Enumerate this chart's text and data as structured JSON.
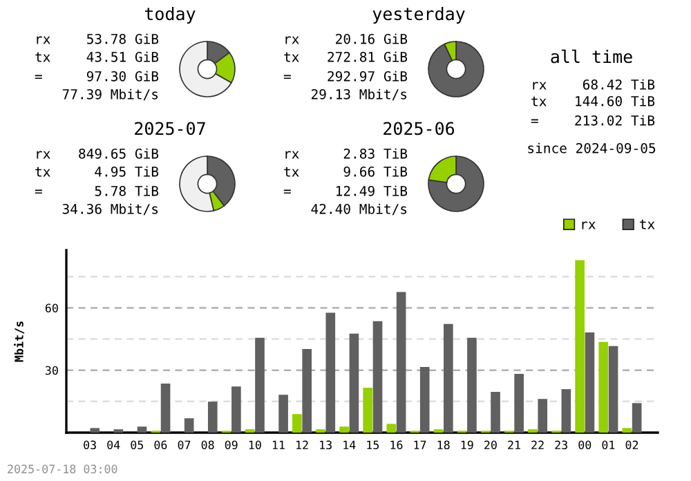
{
  "chart_data": [
    {
      "type": "donut",
      "title": "today",
      "categories": [
        null,
        null,
        null
      ],
      "values": [
        14.85,
        18.36,
        66.79
      ],
      "colors": [
        "#606060",
        "#95d000",
        "#f0f0f0"
      ],
      "annotations": [
        "rx 53.78 GiB",
        "tx 43.51 GiB",
        "= 97.30 GiB",
        "77.39 Mbit/s"
      ]
    },
    {
      "type": "donut",
      "title": "yesterday",
      "categories": [
        null,
        null
      ],
      "values": [
        93.1,
        6.9
      ],
      "colors": [
        "#606060",
        "#95d000"
      ],
      "annotations": [
        "rx 20.16 GiB",
        "tx 272.81 GiB",
        "= 292.97 GiB",
        "29.13 Mbit/s"
      ]
    },
    {
      "type": "other",
      "title": "all time",
      "annotations": [
        "rx 68.42 TiB",
        "tx 144.60 TiB",
        "= 213.02 TiB",
        "since 2024-09-05"
      ]
    },
    {
      "type": "donut",
      "title": "2025-07",
      "categories": [
        null,
        null,
        null
      ],
      "values": [
        39.63,
        6.64,
        53.73
      ],
      "colors": [
        "#606060",
        "#95d000",
        "#f0f0f0"
      ],
      "annotations": [
        "rx 849.65 GiB",
        "tx 4.95 TiB",
        "= 5.78 TiB",
        "34.36 Mbit/s"
      ]
    },
    {
      "type": "donut",
      "title": "2025-06",
      "categories": [
        null,
        null
      ],
      "values": [
        77.3,
        22.7
      ],
      "colors": [
        "#606060",
        "#95d000"
      ],
      "annotations": [
        "rx 2.83 TiB",
        "tx 9.66 TiB",
        "= 12.49 TiB",
        "42.40 Mbit/s"
      ]
    },
    {
      "type": "bar",
      "ylabel": "Mbit/s",
      "categories": [
        "03",
        "04",
        "05",
        "06",
        "07",
        "08",
        "09",
        "10",
        "11",
        "12",
        "13",
        "14",
        "15",
        "16",
        "17",
        "18",
        "19",
        "20",
        "21",
        "22",
        "23",
        "00",
        "01",
        "02"
      ],
      "series": [
        {
          "name": "rx",
          "color": "#95d000",
          "values": [
            0,
            0,
            0,
            0.9,
            0,
            0,
            0.9,
            1.6,
            0,
            8.9,
            1.6,
            2.9,
            21.6,
            4.2,
            0.9,
            1.6,
            0.9,
            0.9,
            0.9,
            1.6,
            0.9,
            82.9,
            43.6,
            2.2
          ]
        },
        {
          "name": "tx",
          "color": "#606060",
          "values": [
            2.2,
            1.6,
            2.9,
            23.6,
            6.9,
            14.9,
            22.2,
            45.6,
            18.2,
            40.2,
            57.6,
            47.6,
            53.6,
            67.6,
            31.6,
            52.2,
            45.6,
            19.6,
            28.2,
            16.2,
            20.9,
            48.2,
            41.6,
            14.2
          ]
        }
      ],
      "ylim": [
        0,
        87.7
      ],
      "yticks": [
        {
          "value": 15,
          "label": null
        },
        30,
        {
          "value": 45,
          "label": null
        },
        60,
        {
          "value": 75,
          "label": null
        }
      ],
      "grid": "y",
      "legend": "top right",
      "annotations": [
        "2025-07-18 03:00"
      ]
    }
  ]
}
